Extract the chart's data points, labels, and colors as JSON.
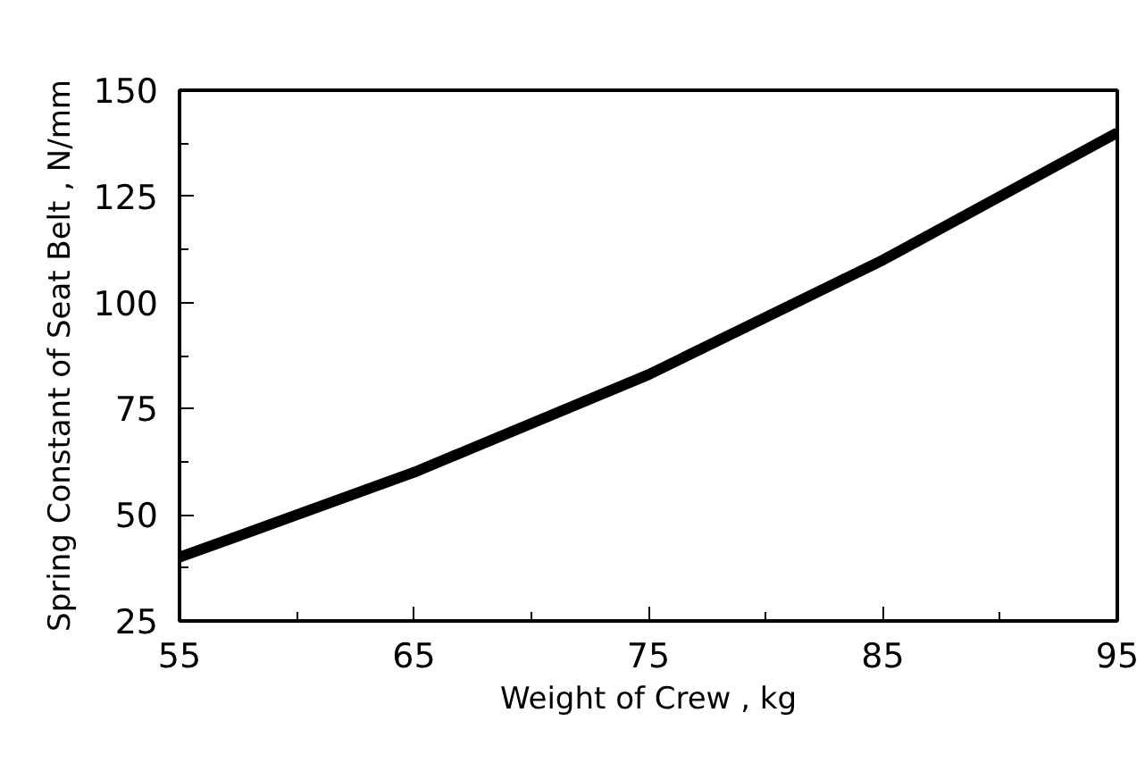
{
  "chart_data": {
    "type": "line",
    "xlabel": "Weight of Crew , kg",
    "ylabel": "Spring Constant of Seat Belt , N/mm",
    "x": [
      55,
      65,
      75,
      85,
      95
    ],
    "series": [
      {
        "color": "#000000",
        "values": [
          40,
          60,
          83,
          110,
          140
        ]
      }
    ],
    "xlim": [
      55,
      95
    ],
    "xticks": [
      55,
      65,
      75,
      85,
      95
    ],
    "ylim": [
      25,
      150
    ],
    "yticks": [
      25,
      50,
      75,
      100,
      125,
      150
    ],
    "grid": false,
    "marker": "none",
    "line_style": "solid"
  }
}
